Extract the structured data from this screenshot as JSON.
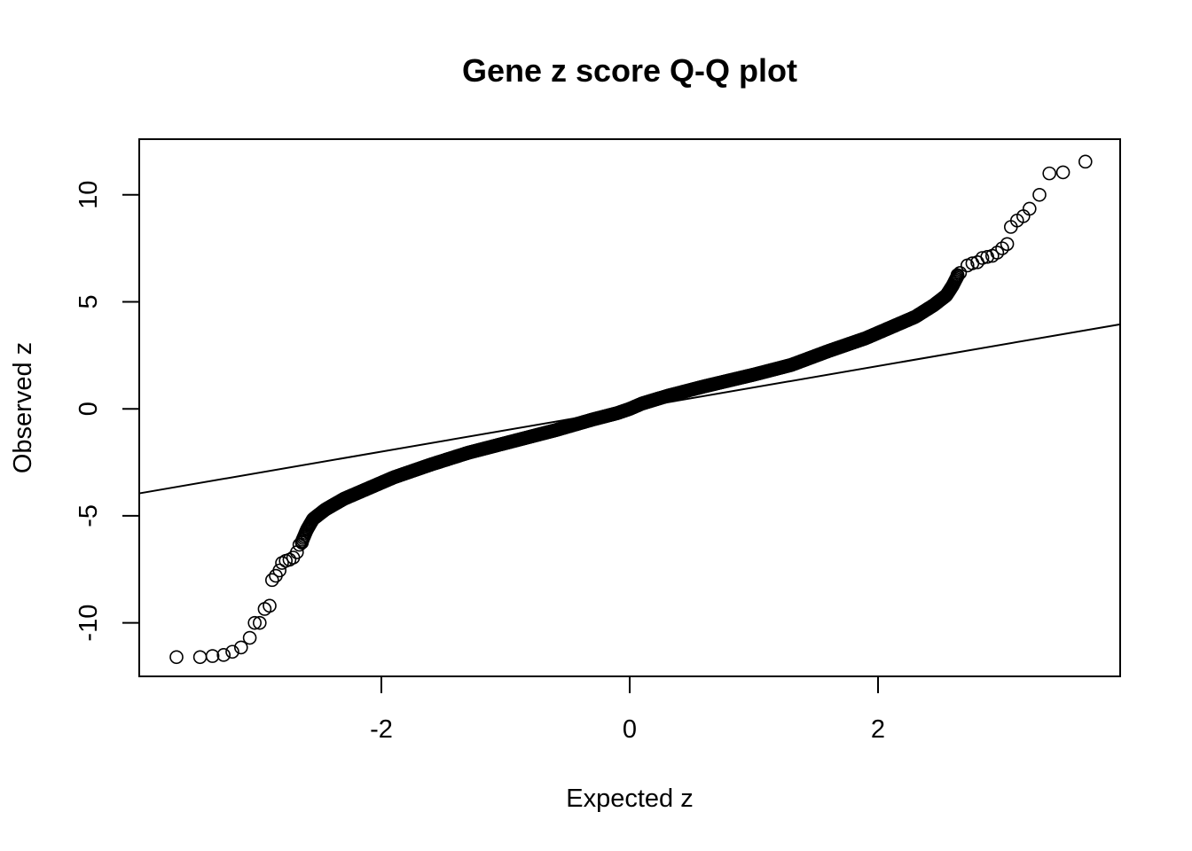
{
  "chart_data": {
    "type": "scatter",
    "title": "Gene z score Q-Q plot",
    "xlabel": "Expected z",
    "ylabel": "Observed z",
    "xlim": [
      -3.95,
      3.95
    ],
    "ylim": [
      -12.5,
      12.6
    ],
    "x_ticks": [
      -2,
      0,
      2
    ],
    "y_ticks": [
      -10,
      -5,
      0,
      5,
      10
    ],
    "grid": false,
    "legend": "none",
    "reference_line": {
      "slope": 1,
      "intercept": 0
    },
    "point_color": "#000000",
    "marker": "open-circle",
    "extreme_points": [
      [
        -3.65,
        -11.6
      ],
      [
        -3.46,
        -11.6
      ],
      [
        -3.36,
        -11.55
      ],
      [
        -3.27,
        -11.5
      ],
      [
        -3.2,
        -11.35
      ],
      [
        -3.13,
        -11.15
      ],
      [
        -3.06,
        -10.7
      ],
      [
        -3.02,
        -10.0
      ],
      [
        -2.98,
        -10.0
      ],
      [
        -2.94,
        -9.35
      ],
      [
        -2.9,
        -9.2
      ],
      [
        -2.88,
        -8.0
      ],
      [
        -2.85,
        -7.8
      ],
      [
        -2.82,
        -7.55
      ],
      [
        -2.8,
        -7.2
      ],
      [
        -2.77,
        -7.1
      ],
      [
        -2.74,
        -7.05
      ],
      [
        -2.71,
        -6.95
      ],
      [
        -2.68,
        -6.7
      ],
      [
        -2.66,
        -6.35
      ],
      [
        -2.64,
        -6.25
      ],
      [
        2.64,
        6.25
      ],
      [
        2.66,
        6.35
      ],
      [
        2.72,
        6.7
      ],
      [
        2.76,
        6.8
      ],
      [
        2.8,
        6.85
      ],
      [
        2.84,
        7.05
      ],
      [
        2.88,
        7.1
      ],
      [
        2.92,
        7.15
      ],
      [
        2.96,
        7.3
      ],
      [
        3.0,
        7.5
      ],
      [
        3.04,
        7.7
      ],
      [
        3.07,
        8.5
      ],
      [
        3.12,
        8.8
      ],
      [
        3.17,
        9.0
      ],
      [
        3.22,
        9.35
      ],
      [
        3.3,
        10.0
      ],
      [
        3.38,
        11.0
      ],
      [
        3.49,
        11.05
      ],
      [
        3.67,
        11.55
      ]
    ],
    "main_band_curve": [
      [
        -2.64,
        -6.2
      ],
      [
        -2.6,
        -5.65
      ],
      [
        -2.55,
        -5.15
      ],
      [
        -2.45,
        -4.7
      ],
      [
        -2.3,
        -4.2
      ],
      [
        -2.1,
        -3.7
      ],
      [
        -1.9,
        -3.2
      ],
      [
        -1.6,
        -2.6
      ],
      [
        -1.3,
        -2.05
      ],
      [
        -1.0,
        -1.6
      ],
      [
        -0.6,
        -1.0
      ],
      [
        -0.3,
        -0.5
      ],
      [
        -0.1,
        -0.2
      ],
      [
        0.0,
        0.0
      ],
      [
        0.1,
        0.25
      ],
      [
        0.3,
        0.6
      ],
      [
        0.6,
        1.05
      ],
      [
        1.0,
        1.6
      ],
      [
        1.3,
        2.05
      ],
      [
        1.6,
        2.7
      ],
      [
        1.9,
        3.3
      ],
      [
        2.1,
        3.8
      ],
      [
        2.3,
        4.3
      ],
      [
        2.45,
        4.85
      ],
      [
        2.55,
        5.3
      ],
      [
        2.6,
        5.75
      ],
      [
        2.64,
        6.2
      ]
    ]
  }
}
